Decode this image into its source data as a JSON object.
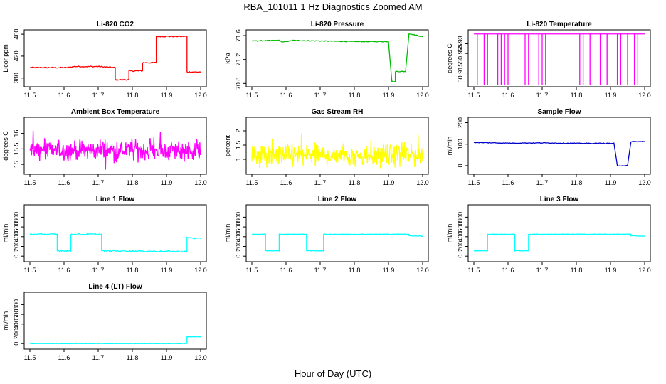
{
  "page": {
    "title": "RBA_101011  1 Hz Diagnostics Zoomed AM",
    "xlabel": "Hour of Day (UTC)"
  },
  "chart_data": [
    {
      "type": "line",
      "title": "Li-820 CO2",
      "ylabel": "Licor ppm",
      "color": "#ff0000",
      "xlim": [
        11.5,
        12.0
      ],
      "ylim": [
        368,
        464
      ],
      "xticks": [
        "11.5",
        "11.6",
        "11.7",
        "11.8",
        "11.9",
        "12.0"
      ],
      "yticks": [
        380,
        420,
        460
      ],
      "style": "step",
      "noise": 1.0,
      "points": [
        [
          11.5,
          399
        ],
        [
          11.61,
          399
        ],
        [
          11.63,
          401
        ],
        [
          11.7,
          401
        ],
        [
          11.75,
          399
        ],
        [
          11.75,
          377
        ],
        [
          11.79,
          377
        ],
        [
          11.79,
          393
        ],
        [
          11.83,
          393
        ],
        [
          11.83,
          408
        ],
        [
          11.87,
          408
        ],
        [
          11.87,
          456
        ],
        [
          11.96,
          456
        ],
        [
          11.96,
          391
        ],
        [
          12.0,
          391
        ]
      ]
    },
    {
      "type": "line",
      "title": "Li-820 Pressure",
      "ylabel": "kPa",
      "color": "#00bb00",
      "xlim": [
        11.5,
        12.0
      ],
      "ylim": [
        70.78,
        71.66
      ],
      "xticks": [
        "11.5",
        "11.6",
        "11.7",
        "11.8",
        "11.9",
        "12.0"
      ],
      "yticks": [
        70.8,
        71.2,
        71.6
      ],
      "style": "step",
      "noise": 0.006,
      "points": [
        [
          11.5,
          71.51
        ],
        [
          11.58,
          71.52
        ],
        [
          11.59,
          71.49
        ],
        [
          11.62,
          71.52
        ],
        [
          11.7,
          71.51
        ],
        [
          11.8,
          71.5
        ],
        [
          11.9,
          71.5
        ],
        [
          11.91,
          70.83
        ],
        [
          11.92,
          70.83
        ],
        [
          11.92,
          71.0
        ],
        [
          11.95,
          71.0
        ],
        [
          11.96,
          71.63
        ],
        [
          11.97,
          71.62
        ],
        [
          12.0,
          71.58
        ]
      ]
    },
    {
      "type": "line",
      "title": "Li-820 Temperature",
      "ylabel": "degrees C",
      "color": "#ff00ff",
      "xlim": [
        11.5,
        12.0
      ],
      "ylim": [
        50.909,
        50.936
      ],
      "xticks": [
        "11.5",
        "11.6",
        "11.7",
        "11.8",
        "11.9",
        "12.0"
      ],
      "yticks": [
        50.915,
        50.925,
        50.93
      ],
      "baseline": 50.935,
      "low": 50.909,
      "dropouts": [
        11.51,
        11.53,
        11.54,
        11.57,
        11.58,
        11.59,
        11.6,
        11.65,
        11.66,
        11.69,
        11.7,
        11.71,
        11.81,
        11.82,
        11.84,
        11.87,
        11.89,
        11.92,
        11.93,
        11.95,
        11.97,
        11.98
      ]
    },
    {
      "type": "line",
      "title": "Ambient Box Temperature",
      "ylabel": "degrees C",
      "color": "#ff00ff",
      "xlim": [
        11.5,
        12.0
      ],
      "ylim": [
        14.75,
        16.45
      ],
      "xticks": [
        "11.5",
        "11.6",
        "11.7",
        "11.8",
        "11.9",
        "12.0"
      ],
      "yticks": [
        15.0,
        15.5,
        16.0
      ],
      "style": "noise",
      "mean": 15.45,
      "noise": 0.45
    },
    {
      "type": "line",
      "title": "Gas Stream RH",
      "ylabel": "percent",
      "color": "#ffff00",
      "xlim": [
        11.5,
        12.0
      ],
      "ylim": [
        0.55,
        2.4
      ],
      "xticks": [
        "11.5",
        "11.6",
        "11.7",
        "11.8",
        "11.9",
        "12.0"
      ],
      "yticks": [
        1.0,
        1.5,
        2.0
      ],
      "style": "noise",
      "mean": 1.15,
      "noise": 0.55
    },
    {
      "type": "line",
      "title": "Sample Flow",
      "ylabel": "ml/min",
      "color": "#0000cc",
      "xlim": [
        11.5,
        12.0
      ],
      "ylim": [
        -30,
        215
      ],
      "xticks": [
        "11.5",
        "11.6",
        "11.7",
        "11.8",
        "11.9",
        "12.0"
      ],
      "yticks": [
        0,
        100,
        200
      ],
      "style": "step",
      "noise": 1.5,
      "points": [
        [
          11.5,
          108
        ],
        [
          11.6,
          105
        ],
        [
          11.7,
          106
        ],
        [
          11.8,
          104
        ],
        [
          11.91,
          104
        ],
        [
          11.92,
          0
        ],
        [
          11.95,
          0
        ],
        [
          11.96,
          112
        ],
        [
          12.0,
          112
        ]
      ]
    },
    {
      "type": "line",
      "title": "Line 1 Flow",
      "ylabel": "ml/min",
      "color": "#00ffff",
      "xlim": [
        11.5,
        12.0
      ],
      "ylim": [
        -70,
        1010
      ],
      "xticks": [
        "11.5",
        "11.6",
        "11.7",
        "11.8",
        "11.9",
        "12.0"
      ],
      "yticks": [
        0,
        200,
        400,
        600,
        800
      ],
      "style": "step",
      "noise": 12,
      "points": [
        [
          11.5,
          450
        ],
        [
          11.58,
          450
        ],
        [
          11.58,
          110
        ],
        [
          11.62,
          110
        ],
        [
          11.62,
          450
        ],
        [
          11.71,
          450
        ],
        [
          11.71,
          110
        ],
        [
          11.95,
          95
        ],
        [
          11.96,
          95
        ],
        [
          11.96,
          380
        ],
        [
          12.0,
          360
        ]
      ]
    },
    {
      "type": "line",
      "title": "Line 2 Flow",
      "ylabel": "ml/min",
      "color": "#00ffff",
      "xlim": [
        11.5,
        12.0
      ],
      "ylim": [
        -70,
        1010
      ],
      "xticks": [
        "11.5",
        "11.6",
        "11.7",
        "11.8",
        "11.9",
        "12.0"
      ],
      "yticks": [
        0,
        200,
        400,
        600,
        800
      ],
      "style": "step",
      "noise": 4,
      "points": [
        [
          11.5,
          450
        ],
        [
          11.54,
          450
        ],
        [
          11.54,
          110
        ],
        [
          11.58,
          110
        ],
        [
          11.58,
          450
        ],
        [
          11.66,
          450
        ],
        [
          11.66,
          110
        ],
        [
          11.71,
          110
        ],
        [
          11.71,
          450
        ],
        [
          11.96,
          450
        ],
        [
          11.96,
          420
        ],
        [
          12.0,
          410
        ]
      ]
    },
    {
      "type": "line",
      "title": "Line 3 Flow",
      "ylabel": "ml/min",
      "color": "#00ffff",
      "xlim": [
        11.5,
        12.0
      ],
      "ylim": [
        -70,
        1010
      ],
      "xticks": [
        "11.5",
        "11.6",
        "11.7",
        "11.8",
        "11.9",
        "12.0"
      ],
      "yticks": [
        0,
        200,
        400,
        600,
        800
      ],
      "style": "step",
      "noise": 4,
      "points": [
        [
          11.5,
          110
        ],
        [
          11.54,
          110
        ],
        [
          11.54,
          450
        ],
        [
          11.62,
          450
        ],
        [
          11.62,
          110
        ],
        [
          11.66,
          110
        ],
        [
          11.66,
          450
        ],
        [
          11.96,
          450
        ],
        [
          11.96,
          420
        ],
        [
          12.0,
          410
        ]
      ]
    },
    {
      "type": "line",
      "title": "Line 4 (LT) Flow",
      "ylabel": "ml/min",
      "color": "#00ffff",
      "xlim": [
        11.5,
        12.0
      ],
      "ylim": [
        -70,
        1010
      ],
      "xticks": [
        "11.5",
        "11.6",
        "11.7",
        "11.8",
        "11.9",
        "12.0"
      ],
      "yticks": [
        0,
        200,
        400,
        600,
        800
      ],
      "style": "step",
      "noise": 3,
      "points": [
        [
          11.5,
          0
        ],
        [
          11.96,
          0
        ],
        [
          11.96,
          140
        ],
        [
          12.0,
          140
        ]
      ]
    }
  ]
}
